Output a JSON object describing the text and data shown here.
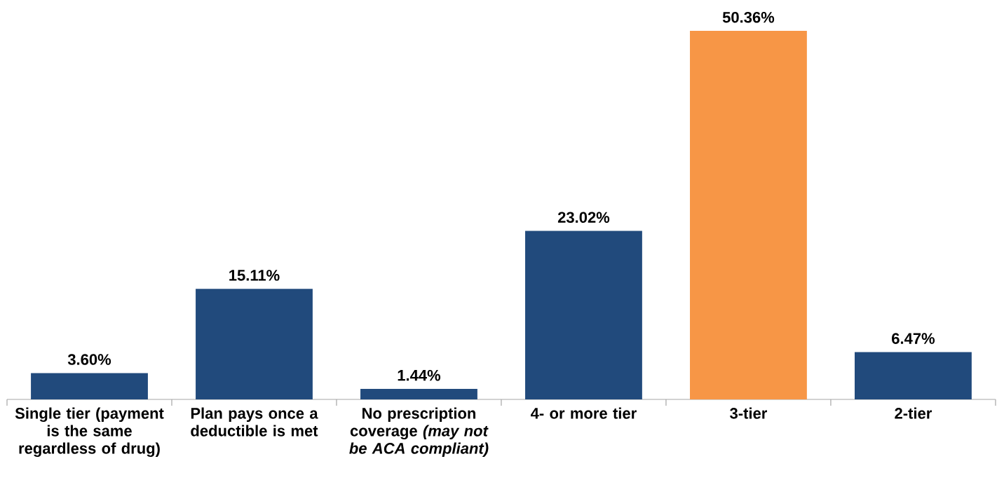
{
  "chart_data": {
    "type": "bar",
    "categories": [
      "Single tier (payment is the same regardless of drug)",
      "Plan pays once a deductible is met",
      "No prescription coverage *(may not be ACA compliant)*",
      "4- or more tier",
      "3-tier",
      "2-tier"
    ],
    "values": [
      3.6,
      15.11,
      1.44,
      23.02,
      50.36,
      6.47
    ],
    "colors": [
      "#214a7c",
      "#214a7c",
      "#214a7c",
      "#214a7c",
      "#f79646",
      "#214a7c"
    ],
    "value_labels": [
      "3.60%",
      "15.11%",
      "1.44%",
      "23.02%",
      "50.36%",
      "6.47%"
    ]
  }
}
